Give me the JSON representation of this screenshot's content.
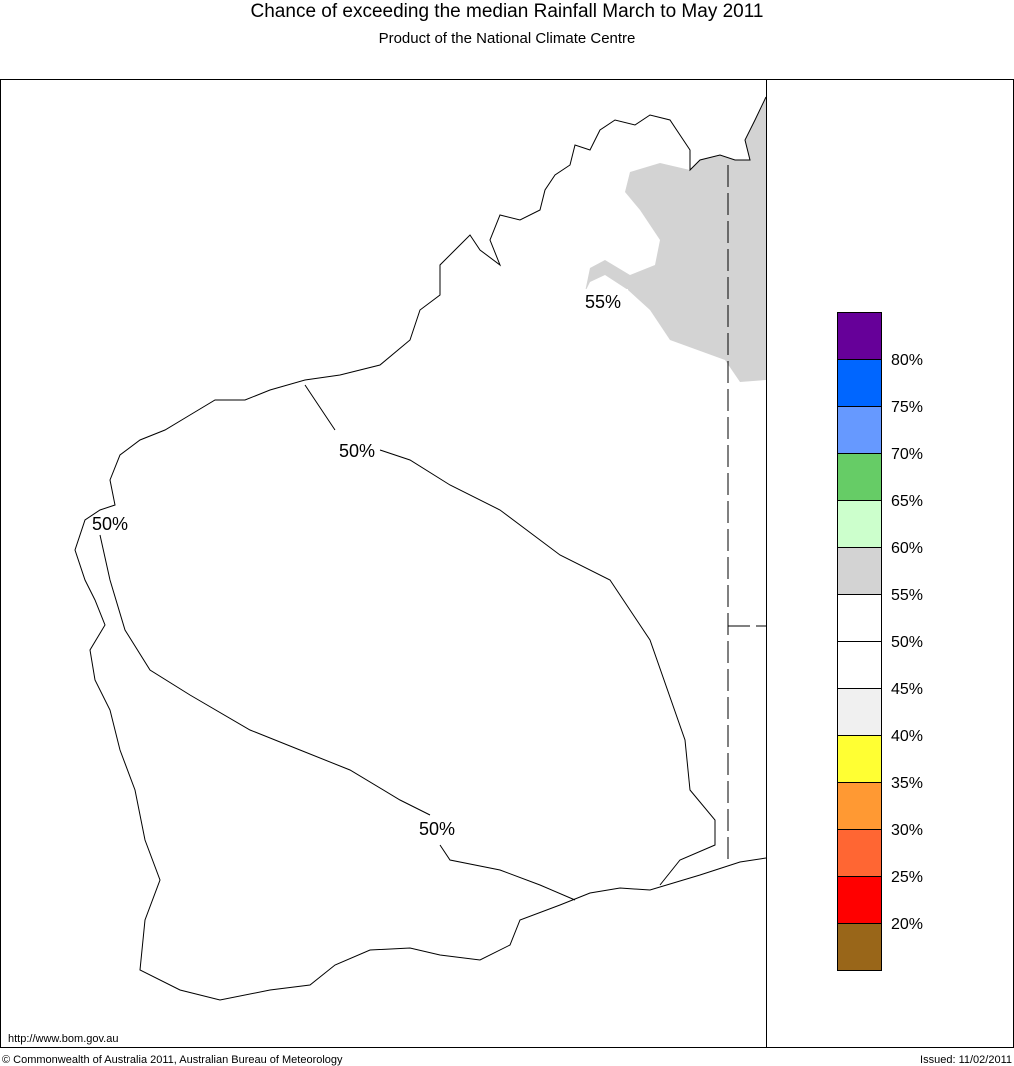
{
  "header": {
    "title": "Chance of exceeding the median Rainfall March to May 2011",
    "subtitle": "Product of the National Climate Centre"
  },
  "map": {
    "contour_labels": [
      "55%",
      "50%",
      "50%",
      "50%"
    ]
  },
  "legend": {
    "colors": [
      "#660099",
      "#0066ff",
      "#6699ff",
      "#66cc66",
      "#ccffcc",
      "#d3d3d3",
      "#ffffff",
      "#ffffff",
      "#f0f0f0",
      "#ffff33",
      "#ff9933",
      "#ff6633",
      "#ff0000",
      "#996619"
    ],
    "labels": [
      "80%",
      "75%",
      "70%",
      "65%",
      "60%",
      "55%",
      "50%",
      "45%",
      "40%",
      "35%",
      "30%",
      "25%",
      "20%"
    ]
  },
  "footer": {
    "url": "http://www.bom.gov.au",
    "copyright": "© Commonwealth of Australia 2011, Australian Bureau of Meteorology",
    "issued": "Issued: 11/02/2011"
  }
}
